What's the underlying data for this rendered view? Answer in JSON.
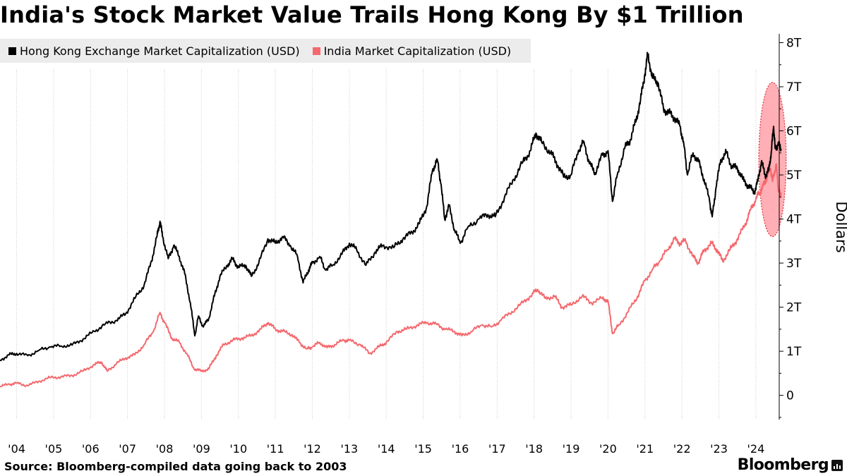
{
  "title": "India's Stock Market Value Trails Hong Kong By $1 Trillion",
  "source": "Source: Bloomberg-compiled data going back to 2003",
  "brand": "Bloomberg",
  "chart_data": {
    "type": "line",
    "title": "India's Stock Market Value Trails Hong Kong By $1 Trillion",
    "xlabel": "",
    "ylabel": "Dollars",
    "xlim": [
      2003.55,
      2024.9
    ],
    "ylim": [
      -0.55,
      8.2
    ],
    "x_ticks": [
      2004,
      2005,
      2006,
      2007,
      2008,
      2009,
      2010,
      2011,
      2012,
      2013,
      2014,
      2015,
      2016,
      2017,
      2018,
      2019,
      2020,
      2021,
      2022,
      2023,
      2024
    ],
    "x_tick_labels": [
      "'04",
      "'05",
      "'06",
      "'07",
      "'08",
      "'09",
      "'10",
      "'11",
      "'12",
      "'13",
      "'14",
      "'15",
      "'16",
      "'17",
      "'18",
      "'19",
      "'20",
      "'21",
      "'22",
      "'23",
      "'24"
    ],
    "y_ticks": [
      0,
      1,
      2,
      3,
      4,
      5,
      6,
      7,
      8
    ],
    "y_tick_labels": [
      "0",
      "1T",
      "2T",
      "3T",
      "4T",
      "5T",
      "6T",
      "7T",
      "8T"
    ],
    "grid": "vertical-dotted",
    "y_axis_side": "right",
    "legend_position": "top-left",
    "highlight": {
      "shape": "ellipse",
      "x_center": 2024.45,
      "y_center": 5.35,
      "x_radius": 0.37,
      "y_radius": 1.75,
      "color": "#ff6e78"
    },
    "series": [
      {
        "name": "Hong Kong Exchange Market Capitalization (USD)",
        "color": "#000000",
        "points": [
          [
            2003.55,
            0.8
          ],
          [
            2003.8,
            0.92
          ],
          [
            2004.0,
            0.95
          ],
          [
            2004.3,
            0.9
          ],
          [
            2004.6,
            1.02
          ],
          [
            2004.9,
            1.1
          ],
          [
            2005.2,
            1.12
          ],
          [
            2005.5,
            1.14
          ],
          [
            2005.8,
            1.28
          ],
          [
            2006.1,
            1.45
          ],
          [
            2006.4,
            1.62
          ],
          [
            2006.7,
            1.7
          ],
          [
            2006.95,
            1.85
          ],
          [
            2007.2,
            2.2
          ],
          [
            2007.45,
            2.5
          ],
          [
            2007.65,
            3.05
          ],
          [
            2007.8,
            3.62
          ],
          [
            2007.88,
            3.95
          ],
          [
            2007.95,
            3.6
          ],
          [
            2008.1,
            3.1
          ],
          [
            2008.25,
            3.4
          ],
          [
            2008.4,
            3.15
          ],
          [
            2008.55,
            2.75
          ],
          [
            2008.7,
            2.1
          ],
          [
            2008.82,
            1.35
          ],
          [
            2008.92,
            1.8
          ],
          [
            2009.05,
            1.55
          ],
          [
            2009.2,
            1.75
          ],
          [
            2009.35,
            2.25
          ],
          [
            2009.5,
            2.7
          ],
          [
            2009.7,
            2.95
          ],
          [
            2009.85,
            3.1
          ],
          [
            2010.0,
            2.9
          ],
          [
            2010.2,
            2.95
          ],
          [
            2010.35,
            2.7
          ],
          [
            2010.55,
            3.0
          ],
          [
            2010.8,
            3.55
          ],
          [
            2011.0,
            3.45
          ],
          [
            2011.2,
            3.6
          ],
          [
            2011.4,
            3.4
          ],
          [
            2011.6,
            3.15
          ],
          [
            2011.75,
            2.55
          ],
          [
            2011.9,
            2.85
          ],
          [
            2012.0,
            3.0
          ],
          [
            2012.2,
            3.15
          ],
          [
            2012.35,
            2.85
          ],
          [
            2012.55,
            2.95
          ],
          [
            2012.8,
            3.2
          ],
          [
            2013.0,
            3.45
          ],
          [
            2013.2,
            3.3
          ],
          [
            2013.45,
            2.95
          ],
          [
            2013.7,
            3.25
          ],
          [
            2013.9,
            3.4
          ],
          [
            2014.2,
            3.35
          ],
          [
            2014.45,
            3.55
          ],
          [
            2014.7,
            3.7
          ],
          [
            2014.9,
            3.9
          ],
          [
            2015.1,
            4.3
          ],
          [
            2015.25,
            5.1
          ],
          [
            2015.38,
            5.35
          ],
          [
            2015.48,
            4.8
          ],
          [
            2015.58,
            4.0
          ],
          [
            2015.7,
            4.3
          ],
          [
            2015.85,
            3.75
          ],
          [
            2016.0,
            3.45
          ],
          [
            2016.2,
            3.8
          ],
          [
            2016.5,
            4.0
          ],
          [
            2016.75,
            4.1
          ],
          [
            2016.95,
            4.05
          ],
          [
            2017.2,
            4.5
          ],
          [
            2017.45,
            4.9
          ],
          [
            2017.7,
            5.3
          ],
          [
            2017.9,
            5.55
          ],
          [
            2018.05,
            5.95
          ],
          [
            2018.2,
            5.75
          ],
          [
            2018.45,
            5.5
          ],
          [
            2018.6,
            5.3
          ],
          [
            2018.8,
            4.95
          ],
          [
            2019.0,
            5.0
          ],
          [
            2019.2,
            5.55
          ],
          [
            2019.35,
            5.75
          ],
          [
            2019.5,
            5.25
          ],
          [
            2019.65,
            5.05
          ],
          [
            2019.85,
            5.45
          ],
          [
            2020.0,
            5.55
          ],
          [
            2020.12,
            4.4
          ],
          [
            2020.25,
            5.0
          ],
          [
            2020.45,
            5.6
          ],
          [
            2020.6,
            5.8
          ],
          [
            2020.75,
            6.2
          ],
          [
            2020.88,
            6.7
          ],
          [
            2021.0,
            7.3
          ],
          [
            2021.08,
            7.75
          ],
          [
            2021.2,
            7.2
          ],
          [
            2021.35,
            7.1
          ],
          [
            2021.5,
            6.5
          ],
          [
            2021.65,
            6.4
          ],
          [
            2021.8,
            6.3
          ],
          [
            2021.95,
            6.1
          ],
          [
            2022.05,
            5.7
          ],
          [
            2022.15,
            5.0
          ],
          [
            2022.3,
            5.5
          ],
          [
            2022.45,
            5.3
          ],
          [
            2022.6,
            4.9
          ],
          [
            2022.75,
            4.4
          ],
          [
            2022.82,
            4.05
          ],
          [
            2022.92,
            4.7
          ],
          [
            2023.05,
            5.35
          ],
          [
            2023.2,
            5.5
          ],
          [
            2023.35,
            5.2
          ],
          [
            2023.5,
            5.15
          ],
          [
            2023.65,
            4.9
          ],
          [
            2023.8,
            4.75
          ],
          [
            2023.95,
            4.6
          ],
          [
            2024.05,
            4.85
          ],
          [
            2024.15,
            5.3
          ],
          [
            2024.25,
            5.0
          ],
          [
            2024.35,
            5.1
          ],
          [
            2024.42,
            5.55
          ],
          [
            2024.48,
            6.1
          ],
          [
            2024.52,
            5.6
          ],
          [
            2024.6,
            5.7
          ],
          [
            2024.68,
            5.6
          ]
        ]
      },
      {
        "name": "India Market Capitalization (USD)",
        "color": "#f4696e",
        "points": [
          [
            2003.55,
            0.2
          ],
          [
            2003.8,
            0.25
          ],
          [
            2004.0,
            0.28
          ],
          [
            2004.3,
            0.22
          ],
          [
            2004.6,
            0.32
          ],
          [
            2004.9,
            0.4
          ],
          [
            2005.2,
            0.42
          ],
          [
            2005.5,
            0.45
          ],
          [
            2005.8,
            0.55
          ],
          [
            2006.1,
            0.7
          ],
          [
            2006.3,
            0.75
          ],
          [
            2006.45,
            0.55
          ],
          [
            2006.7,
            0.72
          ],
          [
            2006.95,
            0.85
          ],
          [
            2007.2,
            0.92
          ],
          [
            2007.45,
            1.15
          ],
          [
            2007.7,
            1.45
          ],
          [
            2007.88,
            1.88
          ],
          [
            2008.0,
            1.65
          ],
          [
            2008.2,
            1.3
          ],
          [
            2008.4,
            1.2
          ],
          [
            2008.6,
            0.95
          ],
          [
            2008.8,
            0.6
          ],
          [
            2009.0,
            0.55
          ],
          [
            2009.2,
            0.6
          ],
          [
            2009.4,
            0.9
          ],
          [
            2009.6,
            1.15
          ],
          [
            2009.85,
            1.25
          ],
          [
            2010.1,
            1.3
          ],
          [
            2010.35,
            1.35
          ],
          [
            2010.6,
            1.5
          ],
          [
            2010.8,
            1.65
          ],
          [
            2011.0,
            1.5
          ],
          [
            2011.2,
            1.45
          ],
          [
            2011.45,
            1.38
          ],
          [
            2011.65,
            1.2
          ],
          [
            2011.85,
            1.05
          ],
          [
            2012.0,
            1.1
          ],
          [
            2012.2,
            1.2
          ],
          [
            2012.4,
            1.08
          ],
          [
            2012.6,
            1.15
          ],
          [
            2012.85,
            1.25
          ],
          [
            2013.0,
            1.25
          ],
          [
            2013.3,
            1.15
          ],
          [
            2013.55,
            0.95
          ],
          [
            2013.8,
            1.1
          ],
          [
            2014.0,
            1.2
          ],
          [
            2014.3,
            1.45
          ],
          [
            2014.55,
            1.5
          ],
          [
            2014.85,
            1.6
          ],
          [
            2015.1,
            1.65
          ],
          [
            2015.35,
            1.62
          ],
          [
            2015.6,
            1.5
          ],
          [
            2015.85,
            1.45
          ],
          [
            2016.05,
            1.35
          ],
          [
            2016.3,
            1.45
          ],
          [
            2016.6,
            1.6
          ],
          [
            2016.85,
            1.55
          ],
          [
            2017.1,
            1.7
          ],
          [
            2017.4,
            1.9
          ],
          [
            2017.7,
            2.1
          ],
          [
            2017.95,
            2.3
          ],
          [
            2018.1,
            2.4
          ],
          [
            2018.3,
            2.2
          ],
          [
            2018.55,
            2.25
          ],
          [
            2018.75,
            2.0
          ],
          [
            2019.0,
            2.05
          ],
          [
            2019.3,
            2.25
          ],
          [
            2019.55,
            2.1
          ],
          [
            2019.85,
            2.2
          ],
          [
            2020.0,
            2.15
          ],
          [
            2020.12,
            1.4
          ],
          [
            2020.3,
            1.6
          ],
          [
            2020.55,
            1.9
          ],
          [
            2020.8,
            2.25
          ],
          [
            2021.0,
            2.6
          ],
          [
            2021.2,
            2.85
          ],
          [
            2021.4,
            3.05
          ],
          [
            2021.6,
            3.3
          ],
          [
            2021.8,
            3.55
          ],
          [
            2021.95,
            3.45
          ],
          [
            2022.1,
            3.5
          ],
          [
            2022.3,
            3.15
          ],
          [
            2022.45,
            3.0
          ],
          [
            2022.6,
            3.3
          ],
          [
            2022.8,
            3.45
          ],
          [
            2022.95,
            3.3
          ],
          [
            2023.1,
            3.05
          ],
          [
            2023.3,
            3.3
          ],
          [
            2023.5,
            3.55
          ],
          [
            2023.7,
            3.85
          ],
          [
            2023.85,
            4.2
          ],
          [
            2024.0,
            4.45
          ],
          [
            2024.1,
            4.6
          ],
          [
            2024.2,
            4.75
          ],
          [
            2024.3,
            4.95
          ],
          [
            2024.4,
            5.15
          ],
          [
            2024.45,
            4.85
          ],
          [
            2024.55,
            5.25
          ],
          [
            2024.6,
            4.75
          ],
          [
            2024.65,
            4.55
          ],
          [
            2024.68,
            4.6
          ]
        ]
      }
    ]
  }
}
